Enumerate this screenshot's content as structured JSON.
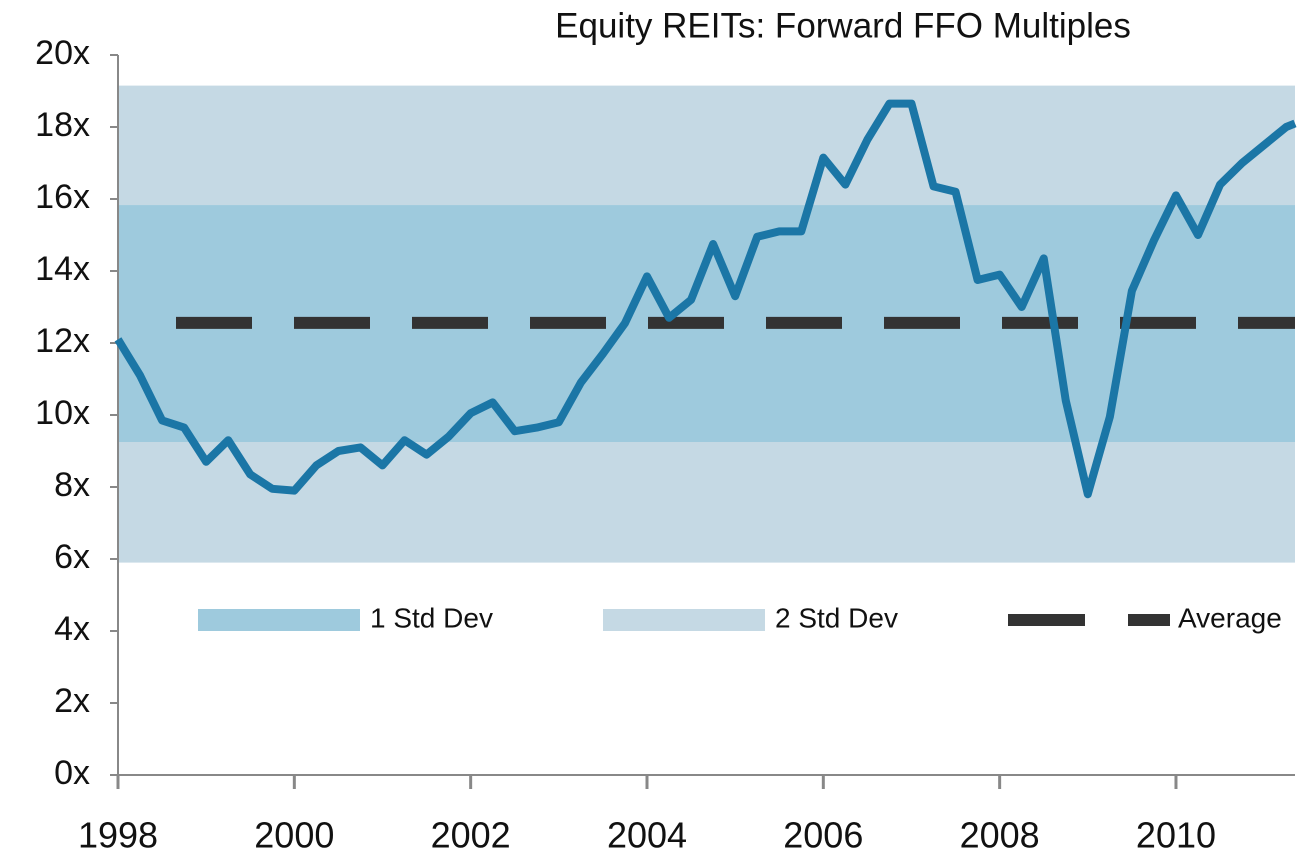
{
  "chart_data": {
    "type": "line",
    "title": "Equity REITs: Forward FFO Multiples",
    "x": [
      1998.0,
      1998.25,
      1998.5,
      1998.75,
      1999.0,
      1999.25,
      1999.5,
      1999.75,
      2000.0,
      2000.25,
      2000.5,
      2000.75,
      2001.0,
      2001.25,
      2001.5,
      2001.75,
      2002.0,
      2002.25,
      2002.5,
      2002.75,
      2003.0,
      2003.25,
      2003.5,
      2003.75,
      2004.0,
      2004.25,
      2004.5,
      2004.75,
      2005.0,
      2005.25,
      2005.5,
      2005.75,
      2006.0,
      2006.25,
      2006.5,
      2006.75,
      2007.0,
      2007.25,
      2007.5,
      2007.75,
      2008.0,
      2008.25,
      2008.5,
      2008.75,
      2009.0,
      2009.25,
      2009.5,
      2009.75,
      2010.0,
      2010.25,
      2010.5,
      2010.75,
      2011.0,
      2011.25,
      2011.35
    ],
    "series": [
      {
        "name": "Forward FFO Multiple",
        "color": "#1b76a6",
        "values": [
          12.1,
          11.1,
          9.85,
          9.65,
          8.7,
          9.3,
          8.35,
          7.95,
          7.9,
          8.6,
          9.0,
          9.1,
          8.6,
          9.3,
          8.9,
          9.4,
          10.05,
          10.35,
          9.55,
          9.65,
          9.8,
          10.9,
          11.7,
          12.55,
          13.85,
          12.7,
          13.2,
          14.75,
          13.3,
          14.95,
          15.1,
          15.1,
          17.15,
          16.4,
          17.65,
          18.65,
          18.65,
          16.35,
          16.2,
          13.75,
          13.9,
          13.0,
          14.35,
          10.4,
          7.8,
          9.95,
          13.45,
          14.85,
          16.1,
          15.0,
          16.4,
          17.0,
          17.5,
          18.0,
          18.1
        ]
      }
    ],
    "bands": [
      {
        "name": "1 Std Dev",
        "color": "#9ecadd",
        "range": [
          9.25,
          15.83
        ]
      },
      {
        "name": "2 Std Dev",
        "color": "#c5d9e4",
        "range": [
          5.9,
          19.15
        ]
      }
    ],
    "average": {
      "name": "Average",
      "value": 12.56,
      "color": "#333333"
    },
    "xlim": [
      1998,
      2011.35
    ],
    "xticks": [
      1998,
      2000,
      2002,
      2004,
      2006,
      2008,
      2010
    ],
    "ylim": [
      0,
      20
    ],
    "yticks": [
      {
        "value": 0,
        "label": "0x"
      },
      {
        "value": 2,
        "label": "2x"
      },
      {
        "value": 4,
        "label": "4x"
      },
      {
        "value": 6,
        "label": "6x"
      },
      {
        "value": 8,
        "label": "8x"
      },
      {
        "value": 10,
        "label": "10x"
      },
      {
        "value": 12,
        "label": "12x"
      },
      {
        "value": 14,
        "label": "14x"
      },
      {
        "value": 16,
        "label": "16x"
      },
      {
        "value": 18,
        "label": "18x"
      },
      {
        "value": 20,
        "label": "20x"
      }
    ]
  }
}
